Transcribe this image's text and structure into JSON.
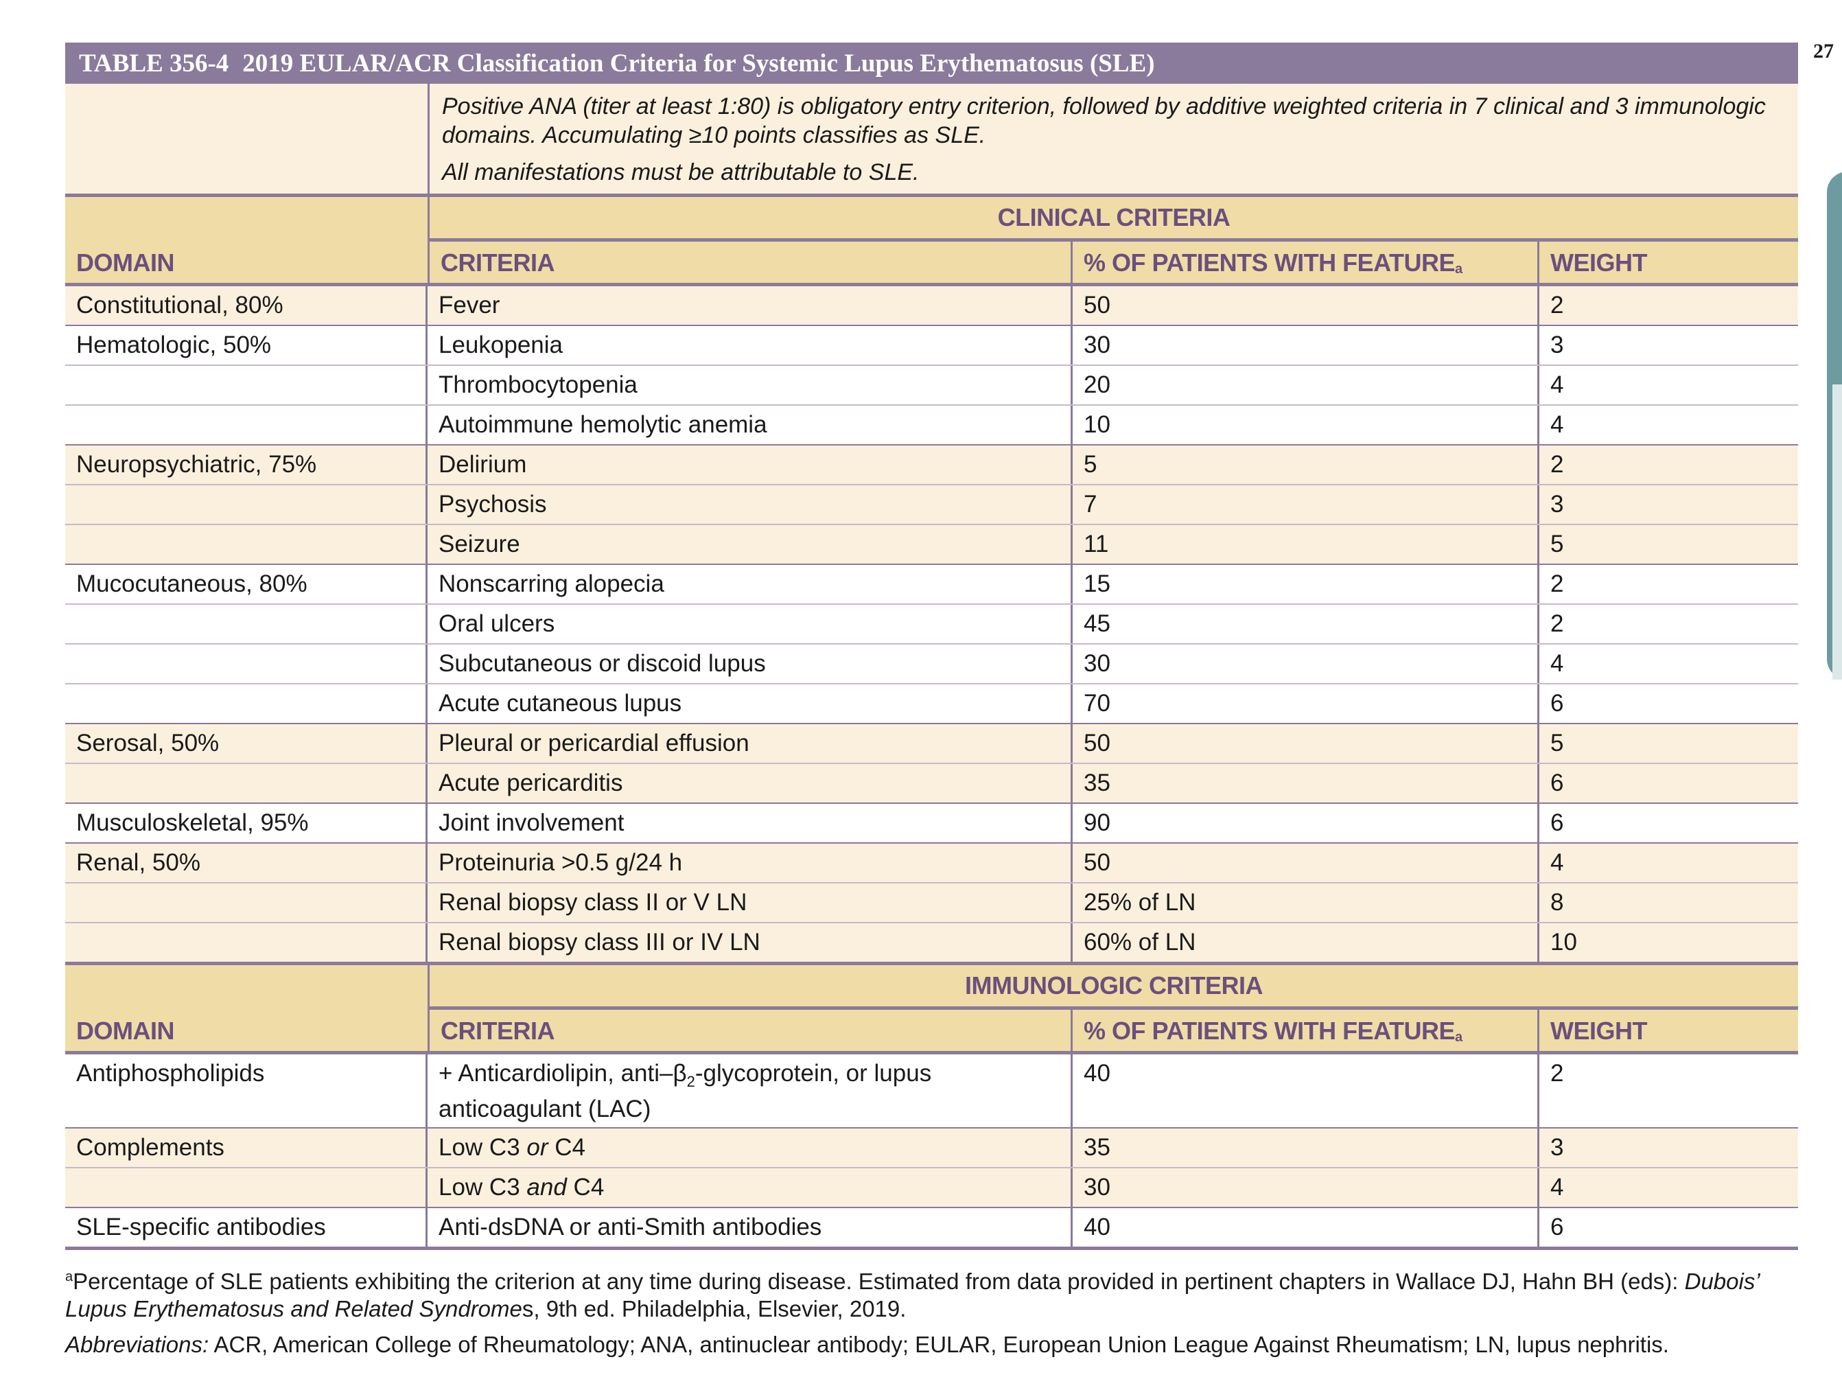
{
  "page_number": "27",
  "table": {
    "number": "TABLE 356-4",
    "title": "2019 EULAR/ACR Classification Criteria for Systemic Lupus Erythematosus (SLE)",
    "entry_line1": "Positive ANA (titer at least 1:80) is obligatory entry criterion, followed by additive weighted criteria in 7 clinical and 3 immunologic domains. Accumulating ≥10 points classifies as SLE.",
    "entry_line2": "All manifestations must be attributable to SLE."
  },
  "headers": {
    "clinical_section": "CLINICAL CRITERIA",
    "immunologic_section": "IMMUNOLOGIC CRITERIA",
    "domain": "DOMAIN",
    "criteria": "CRITERIA",
    "percent": "% OF PATIENTS WITH FEATURE",
    "footnote_mark": "a",
    "weight": "WEIGHT"
  },
  "clinical_rows": [
    {
      "domain": "Constitutional, 80%",
      "criteria": "Fever",
      "percent": "50",
      "weight": "2",
      "bg": "cream"
    },
    {
      "domain": "Hematologic, 50%",
      "criteria": "Leukopenia",
      "percent": "30",
      "weight": "3",
      "bg": "white"
    },
    {
      "domain": "",
      "criteria": "Thrombocytopenia",
      "percent": "20",
      "weight": "4",
      "bg": "white"
    },
    {
      "domain": "",
      "criteria": "Autoimmune hemolytic anemia",
      "percent": "10",
      "weight": "4",
      "bg": "white"
    },
    {
      "domain": "Neuropsychiatric, 75%",
      "criteria": "Delirium",
      "percent": "5",
      "weight": "2",
      "bg": "cream"
    },
    {
      "domain": "",
      "criteria": "Psychosis",
      "percent": "7",
      "weight": "3",
      "bg": "cream"
    },
    {
      "domain": "",
      "criteria": "Seizure",
      "percent": "11",
      "weight": "5",
      "bg": "cream"
    },
    {
      "domain": "Mucocutaneous, 80%",
      "criteria": "Nonscarring alopecia",
      "percent": "15",
      "weight": "2",
      "bg": "white"
    },
    {
      "domain": "",
      "criteria": "Oral ulcers",
      "percent": "45",
      "weight": "2",
      "bg": "white"
    },
    {
      "domain": "",
      "criteria": "Subcutaneous or discoid lupus",
      "percent": "30",
      "weight": "4",
      "bg": "white"
    },
    {
      "domain": "",
      "criteria": "Acute cutaneous lupus",
      "percent": "70",
      "weight": "6",
      "bg": "white"
    },
    {
      "domain": "Serosal, 50%",
      "criteria": "Pleural or pericardial effusion",
      "percent": "50",
      "weight": "5",
      "bg": "cream"
    },
    {
      "domain": "",
      "criteria": "Acute pericarditis",
      "percent": "35",
      "weight": "6",
      "bg": "cream"
    },
    {
      "domain": "Musculoskeletal, 95%",
      "criteria": "Joint involvement",
      "percent": "90",
      "weight": "6",
      "bg": "white"
    },
    {
      "domain": "Renal, 50%",
      "criteria": "Proteinuria >0.5 g/24 h",
      "percent": "50",
      "weight": "4",
      "bg": "cream"
    },
    {
      "domain": "",
      "criteria": "Renal biopsy class II or V LN",
      "percent": "25% of LN",
      "weight": "8",
      "bg": "cream"
    },
    {
      "domain": "",
      "criteria": "Renal biopsy class III or IV LN",
      "percent": "60% of LN",
      "weight": "10",
      "bg": "cream"
    }
  ],
  "immunologic_rows": {
    "antiphospholipids": {
      "domain": "Antiphospholipids",
      "criteria_pre": "+ Anticardiolipin, anti–β",
      "criteria_sub": "2",
      "criteria_post": "-glycoprotein, or lupus anticoagulant (LAC)",
      "percent": "40",
      "weight": "2"
    },
    "complements_1": {
      "domain": "Complements",
      "pre": "Low C3 ",
      "em": "or",
      "post": " C4",
      "percent": "35",
      "weight": "3"
    },
    "complements_2": {
      "pre": "Low C3 ",
      "em": "and",
      "post": " C4",
      "percent": "30",
      "weight": "4"
    },
    "sle_specific": {
      "domain": "SLE-specific antibodies",
      "criteria": "Anti-dsDNA or anti-Smith antibodies",
      "percent": "40",
      "weight": "6"
    }
  },
  "footnotes": {
    "a_mark": "a",
    "a_text_1": "Percentage of SLE patients exhibiting the criterion at any time during disease. Estimated from data provided in pertinent chapters in Wallace DJ, Hahn BH (eds): ",
    "a_italic": "Dubois’ Lupus Erythematosus and Related Syndrome",
    "a_text_2": "s, 9th ed. Philadelphia, Elsevier, 2019.",
    "abbr_label": "Abbreviations:",
    "abbr_text": " ACR, American College of Rheumatology; ANA, antinuclear antibody; EULAR, European Union League Against Rheumatism; LN, lupus nephritis."
  },
  "colors": {
    "title_bar": "#8a7a9b",
    "header_fill": "#f0dca6",
    "cream_row": "#fbf0dd",
    "header_text": "#6b4f7d",
    "side_tab": "#6d9ba0"
  }
}
